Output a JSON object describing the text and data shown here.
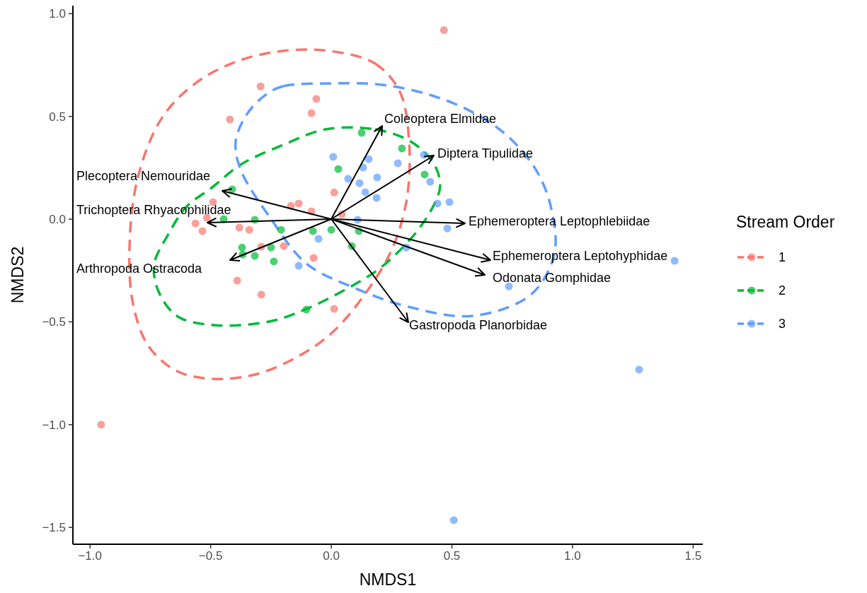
{
  "chart_data": {
    "type": "scatter",
    "xlabel": "NMDS1",
    "ylabel": "NMDS2",
    "legend_title": "Stream Order",
    "legend": "right",
    "grid": false,
    "marker": "circle",
    "xlim": [
      -1.071,
      1.54
    ],
    "ylim": [
      -1.582,
      1.039
    ],
    "xticks": [
      {
        "value": -1,
        "label": "−1.0"
      },
      {
        "value": -0.5,
        "label": "−0.5"
      },
      {
        "value": 0,
        "label": "0.0"
      },
      {
        "value": 0.5,
        "label": "0.5"
      },
      {
        "value": 1,
        "label": "1.0"
      },
      {
        "value": 1.5,
        "label": "1.5"
      }
    ],
    "yticks": [
      {
        "value": -1.5,
        "label": "−1.5"
      },
      {
        "value": -1,
        "label": "−1.0"
      },
      {
        "value": -0.5,
        "label": "−0.5"
      },
      {
        "value": 0,
        "label": "0.0"
      },
      {
        "value": 0.5,
        "label": "0.5"
      },
      {
        "value": 1,
        "label": "1.0"
      }
    ],
    "annotations": [
      "Coleoptera Elmidae",
      "Diptera Tipulidae",
      "Plecoptera Nemouridae",
      "Trichoptera Rhyacophilidae",
      "Ephemeroptera Leptophlebiidae",
      "Arthropoda Ostracoda",
      "Ephemeroptera Leptohyphidae",
      "Odonata Gomphidae",
      "Gastropoda Planorbidae"
    ],
    "series": [
      {
        "name": "1",
        "color": "#f8766d",
        "x": [
          0.467,
          -0.954,
          -0.293,
          -0.062,
          -0.082,
          -0.42,
          0.012,
          -0.167,
          -0.135,
          -0.082,
          0.044,
          -0.49,
          -0.516,
          -0.563,
          -0.534,
          -0.381,
          -0.34,
          -0.29,
          -0.197,
          -0.073,
          -0.39,
          -0.29,
          0.012
        ],
        "values": [
          0.92,
          -1.0,
          0.646,
          0.585,
          0.516,
          0.485,
          0.13,
          0.065,
          0.076,
          0.038,
          0.024,
          0.083,
          0.007,
          -0.021,
          -0.058,
          -0.041,
          -0.052,
          -0.134,
          -0.131,
          -0.189,
          -0.299,
          -0.367,
          -0.437
        ]
      },
      {
        "name": "2",
        "color": "#00ba38",
        "x": [
          0.126,
          0.029,
          -0.411,
          -0.446,
          -0.317,
          -0.208,
          -0.076,
          0.0,
          0.114,
          0.085,
          -0.37,
          -0.367,
          -0.317,
          -0.25,
          -0.238,
          -0.103,
          0.293,
          0.387
        ],
        "values": [
          0.42,
          0.244,
          0.145,
          0.0,
          -0.003,
          -0.052,
          -0.058,
          -0.052,
          -0.058,
          -0.131,
          -0.138,
          -0.172,
          -0.179,
          -0.138,
          -0.206,
          -0.44,
          0.344,
          0.217
        ]
      },
      {
        "name": "3",
        "color": "#619cff",
        "x": [
          1.423,
          1.276,
          0.508,
          0.008,
          0.155,
          0.132,
          0.276,
          0.384,
          0.07,
          0.117,
          0.19,
          0.41,
          0.141,
          0.188,
          0.44,
          0.49,
          0.109,
          0.481,
          -0.053,
          0.311,
          -0.135,
          0.736
        ],
        "values": [
          -0.203,
          -0.732,
          -1.465,
          0.303,
          0.292,
          0.251,
          0.272,
          0.313,
          0.196,
          0.175,
          0.203,
          0.182,
          0.131,
          0.103,
          0.076,
          0.083,
          -0.003,
          -0.045,
          -0.096,
          -0.138,
          -0.227,
          -0.327
        ]
      }
    ]
  }
}
